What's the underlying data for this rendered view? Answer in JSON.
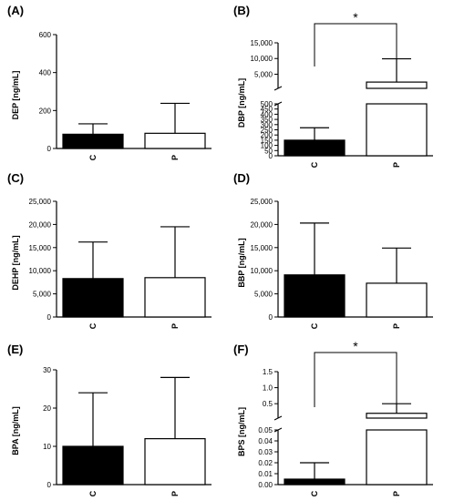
{
  "chart_data": [
    {
      "type": "bar",
      "panel_label": "(A)",
      "ylabel": "DEP [ng/mL]",
      "categories": [
        "C",
        "P"
      ],
      "values": [
        75,
        80
      ],
      "errors": [
        55,
        158
      ],
      "ylim": [
        0,
        600
      ],
      "yticks": [
        0,
        200,
        400,
        600
      ],
      "ytick_labels": [
        "0",
        "200",
        "400",
        "600"
      ],
      "bar_colors": [
        "#000000",
        "#ffffff"
      ],
      "significance": null
    },
    {
      "type": "bar",
      "panel_label": "(B)",
      "ylabel": "DBP [ng/mL]",
      "categories": [
        "C",
        "P"
      ],
      "values": [
        150,
        2500
      ],
      "errors": [
        120,
        7400
      ],
      "axis_break": {
        "lower": [
          0,
          500
        ],
        "upper": [
          500,
          15000
        ]
      },
      "yticks_lower": [
        0,
        50,
        100,
        150,
        200,
        250,
        300,
        350,
        400,
        450,
        500
      ],
      "yticks_lower_labels": [
        "0",
        "50",
        "100",
        "150",
        "200",
        "250",
        "300",
        "350",
        "400",
        "450",
        "500"
      ],
      "yticks_upper": [
        5000,
        10000,
        15000
      ],
      "yticks_upper_labels": [
        "5,000",
        "10,000",
        "15,000"
      ],
      "bar_colors": [
        "#000000",
        "#ffffff"
      ],
      "significance": "*"
    },
    {
      "type": "bar",
      "panel_label": "(C)",
      "ylabel": "DEHP [ng/mL]",
      "categories": [
        "C",
        "P"
      ],
      "values": [
        8300,
        8500
      ],
      "errors": [
        7900,
        11000
      ],
      "ylim": [
        0,
        25000
      ],
      "yticks": [
        0,
        5000,
        10000,
        15000,
        20000,
        25000
      ],
      "ytick_labels": [
        "0",
        "5,000",
        "10,000",
        "15,000",
        "20,000",
        "25,000"
      ],
      "bar_colors": [
        "#000000",
        "#ffffff"
      ],
      "significance": null
    },
    {
      "type": "bar",
      "panel_label": "(D)",
      "ylabel": "BBP [ng/mL]",
      "categories": [
        "C",
        "P"
      ],
      "values": [
        9100,
        7300
      ],
      "errors": [
        11200,
        7600
      ],
      "ylim": [
        0,
        25000
      ],
      "yticks": [
        0,
        5000,
        10000,
        15000,
        20000,
        25000
      ],
      "ytick_labels": [
        "0",
        "5,000",
        "10,000",
        "15,000",
        "20,000",
        "25,000"
      ],
      "bar_colors": [
        "#000000",
        "#ffffff"
      ],
      "significance": null
    },
    {
      "type": "bar",
      "panel_label": "(E)",
      "ylabel": "BPA [ng/mL]",
      "categories": [
        "C",
        "P"
      ],
      "values": [
        10,
        12
      ],
      "errors": [
        14,
        16
      ],
      "ylim": [
        0,
        30
      ],
      "yticks": [
        0,
        10,
        20,
        30
      ],
      "ytick_labels": [
        "0",
        "10",
        "20",
        "30"
      ],
      "bar_colors": [
        "#000000",
        "#ffffff"
      ],
      "significance": null
    },
    {
      "type": "bar",
      "panel_label": "(F)",
      "ylabel": "BPS [ng/mL]",
      "categories": [
        "C",
        "P"
      ],
      "values": [
        0.005,
        0.2
      ],
      "errors": [
        0.015,
        0.3
      ],
      "axis_break": {
        "lower": [
          0,
          0.05
        ],
        "upper": [
          0.05,
          1.5
        ]
      },
      "yticks_lower": [
        0,
        0.01,
        0.02,
        0.03,
        0.04,
        0.05
      ],
      "yticks_lower_labels": [
        "0.00",
        "0.01",
        "0.02",
        "0.03",
        "0.04",
        "0.05"
      ],
      "yticks_upper": [
        0.5,
        1.0,
        1.5
      ],
      "yticks_upper_labels": [
        "0.5",
        "1.0",
        "1.5"
      ],
      "bar_colors": [
        "#000000",
        "#ffffff"
      ],
      "significance": "*"
    }
  ]
}
